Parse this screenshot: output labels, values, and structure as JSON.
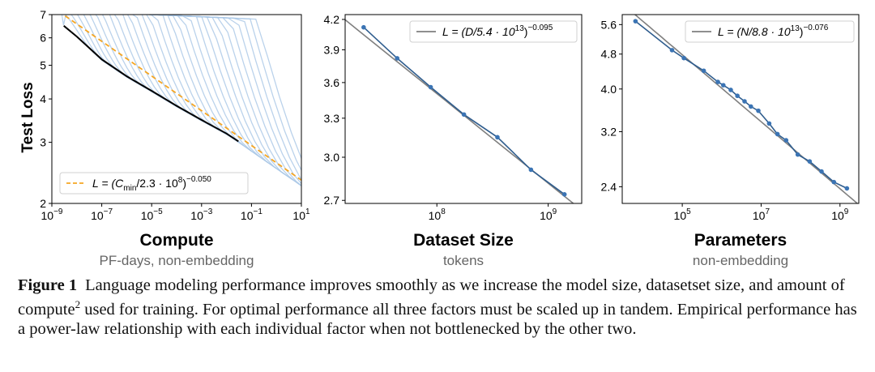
{
  "colors": {
    "run_curves": "#a9c7e6",
    "frontier": "#000000",
    "fit_dashed": "#f5a623",
    "data_line": "#2f5d8e",
    "data_points": "#3b74b4",
    "fit_line": "#7f7f7f",
    "panel_title": "#000000",
    "panel_subtitle": "#666666"
  },
  "ylabel": "Test Loss",
  "chart_data": [
    {
      "type": "line",
      "title": "Compute",
      "subtitle": "PF-days, non-embedding",
      "ylabel": "Test Loss",
      "xscale": "log",
      "yscale": "log",
      "xlim": [
        1e-09,
        10
      ],
      "ylim": [
        2,
        7
      ],
      "xtick_labels": [
        "10",
        "10",
        "10",
        "10",
        "10",
        "10"
      ],
      "xtick_exponents": [
        "−9",
        "−7",
        "−5",
        "−3",
        "−1",
        "1"
      ],
      "xtick_values": [
        1e-09,
        1e-07,
        1e-05,
        0.001,
        0.1,
        10
      ],
      "ytick_labels": [
        "2",
        "3",
        "4",
        "5",
        "6",
        "7"
      ],
      "ytick_values": [
        2,
        3,
        4,
        5,
        6,
        7
      ],
      "legend": {
        "placement": "lower-left",
        "text_prefix": "L = (C",
        "text_sub": "min",
        "text_mid": "/2.3 · 10",
        "text_sup1": "8",
        "text_close": ")",
        "text_sup2": "−0.050"
      },
      "fit": {
        "coef": 230000000.0,
        "exponent": -0.05
      },
      "frontier": {
        "x": [
          3e-09,
          1e-08,
          1e-07,
          1e-06,
          1e-05,
          0.0001,
          0.001,
          0.01,
          0.03
        ],
        "y": [
          6.5,
          6.05,
          5.2,
          4.65,
          4.22,
          3.82,
          3.48,
          3.18,
          3.02
        ]
      },
      "runs_note_count": 30
    },
    {
      "type": "line",
      "title": "Dataset Size",
      "subtitle": "tokens",
      "xscale": "log",
      "yscale": "log",
      "xlim": [
        15000000.0,
        2000000000.0
      ],
      "ylim": [
        2.68,
        4.25
      ],
      "xtick_labels": [
        "10",
        "10"
      ],
      "xtick_exponents": [
        "8",
        "9"
      ],
      "xtick_values": [
        100000000.0,
        1000000000.0
      ],
      "ytick_labels": [
        "2.7",
        "3.0",
        "3.3",
        "3.6",
        "3.9",
        "4.2"
      ],
      "ytick_values": [
        2.7,
        3.0,
        3.3,
        3.6,
        3.9,
        4.2
      ],
      "legend": {
        "placement": "top-right",
        "text_prefix": "L = (D/5.4 · 10",
        "text_sup1": "13",
        "text_close": ")",
        "text_sup2": "−0.095"
      },
      "fit": {
        "coef": 54000000000000.0,
        "exponent": -0.095
      },
      "series": [
        {
          "x": [
            22000000.0,
            44000000.0,
            88000000.0,
            175000000.0,
            350000000.0,
            700000000.0,
            1400000000.0
          ],
          "y": [
            4.12,
            3.82,
            3.56,
            3.33,
            3.15,
            2.91,
            2.74
          ]
        }
      ]
    },
    {
      "type": "line",
      "title": "Parameters",
      "subtitle": "non-embedding",
      "xscale": "log",
      "yscale": "log",
      "xlim": [
        3000.0,
        3000000000.0
      ],
      "ylim": [
        2.2,
        5.9
      ],
      "xtick_labels": [
        "10",
        "10",
        "10"
      ],
      "xtick_exponents": [
        "5",
        "7",
        "9"
      ],
      "xtick_values": [
        100000.0,
        10000000.0,
        1000000000.0
      ],
      "ytick_labels": [
        "2.4",
        "3.2",
        "4.0",
        "4.8",
        "5.6"
      ],
      "ytick_values": [
        2.4,
        3.2,
        4.0,
        4.8,
        5.6
      ],
      "legend": {
        "placement": "top-right",
        "text_prefix": "L = (N/8.8 · 10",
        "text_sup1": "13",
        "text_close": ")",
        "text_sup2": "−0.076"
      },
      "fit": {
        "coef": 88000000000000.0,
        "exponent": -0.076
      },
      "series": [
        {
          "x": [
            6500.0,
            55000.0,
            110000.0,
            350000.0,
            800000.0,
            1100000.0,
            1700000.0,
            2500000.0,
            3800000.0,
            5500000.0,
            8500000.0,
            16000000.0,
            26000000.0,
            43000000.0,
            85000000.0,
            170000000.0,
            340000000.0,
            700000000.0,
            1500000000.0
          ],
          "y": [
            5.7,
            4.9,
            4.7,
            4.4,
            4.15,
            4.08,
            3.98,
            3.86,
            3.75,
            3.65,
            3.57,
            3.34,
            3.16,
            3.06,
            2.84,
            2.74,
            2.6,
            2.46,
            2.38
          ]
        }
      ]
    }
  ],
  "caption": {
    "figure_label": "Figure 1",
    "text_part1": "Language modeling performance improves smoothly as we increase the model size, datasetset size, and amount of compute",
    "footnote_mark": "2",
    "text_part2": " used for training. For optimal performance all three factors must be scaled up in tandem. Empirical performance has a power-law relationship with each individual factor when not bottlenecked by the other two."
  }
}
